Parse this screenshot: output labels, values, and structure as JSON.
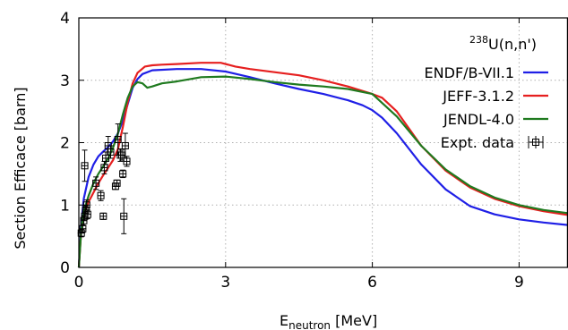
{
  "chart_data": {
    "type": "line",
    "xlabel": {
      "main": "E",
      "sub": "neutron",
      "unit": " [MeV]"
    },
    "ylabel": "Section Efficace [barn]",
    "xlim": [
      0,
      10
    ],
    "ylim": [
      0,
      4
    ],
    "xticks": [
      0,
      3,
      6,
      9
    ],
    "yticks": [
      0,
      1,
      2,
      3,
      4
    ],
    "x_tick_labels": [
      "0",
      "3",
      "6",
      "9"
    ],
    "y_tick_labels": [
      "0",
      "1",
      "2",
      "3",
      "4"
    ],
    "grid": true,
    "legend_title": {
      "sup": "238",
      "main": "U(n,n')"
    },
    "legend_position": "top-right",
    "series": [
      {
        "name": "ENDF/B-VII.1",
        "color": "#1f1fe6",
        "x": [
          0.0,
          0.05,
          0.1,
          0.2,
          0.3,
          0.4,
          0.5,
          0.6,
          0.7,
          0.8,
          0.9,
          1.0,
          1.1,
          1.2,
          1.3,
          1.5,
          2.0,
          2.5,
          3.0,
          3.5,
          4.0,
          4.5,
          5.0,
          5.5,
          5.8,
          6.0,
          6.2,
          6.5,
          7.0,
          7.5,
          8.0,
          8.5,
          9.0,
          9.5,
          10.0
        ],
        "y": [
          0.0,
          0.7,
          1.1,
          1.45,
          1.65,
          1.78,
          1.86,
          1.93,
          2.02,
          2.15,
          2.35,
          2.62,
          2.88,
          3.02,
          3.1,
          3.16,
          3.18,
          3.18,
          3.14,
          3.05,
          2.95,
          2.86,
          2.78,
          2.68,
          2.6,
          2.52,
          2.4,
          2.15,
          1.65,
          1.25,
          0.98,
          0.85,
          0.77,
          0.72,
          0.68
        ]
      },
      {
        "name": "JEFF-3.1.2",
        "color": "#e61f1f",
        "x": [
          0.0,
          0.05,
          0.1,
          0.2,
          0.3,
          0.4,
          0.5,
          0.6,
          0.7,
          0.8,
          0.9,
          1.0,
          1.1,
          1.2,
          1.35,
          1.5,
          1.7,
          2.0,
          2.5,
          2.9,
          3.2,
          3.5,
          4.0,
          4.5,
          5.0,
          5.5,
          6.0,
          6.2,
          6.5,
          7.0,
          7.5,
          8.0,
          8.5,
          9.0,
          9.5,
          10.0
        ],
        "y": [
          0.0,
          0.6,
          0.85,
          1.05,
          1.2,
          1.35,
          1.48,
          1.6,
          1.72,
          1.9,
          2.25,
          2.65,
          2.95,
          3.12,
          3.22,
          3.24,
          3.25,
          3.26,
          3.28,
          3.28,
          3.22,
          3.18,
          3.13,
          3.08,
          3.0,
          2.9,
          2.78,
          2.72,
          2.5,
          1.95,
          1.55,
          1.28,
          1.1,
          0.98,
          0.9,
          0.84
        ]
      },
      {
        "name": "JENDL-4.0",
        "color": "#1f7a1f",
        "x": [
          0.0,
          0.05,
          0.1,
          0.2,
          0.3,
          0.4,
          0.5,
          0.6,
          0.7,
          0.8,
          0.9,
          1.0,
          1.1,
          1.2,
          1.3,
          1.4,
          1.5,
          1.7,
          2.0,
          2.5,
          3.0,
          3.5,
          4.0,
          4.5,
          5.0,
          5.5,
          6.0,
          6.5,
          7.0,
          7.5,
          8.0,
          8.5,
          9.0,
          9.5,
          10.0
        ],
        "y": [
          0.0,
          0.6,
          0.9,
          1.15,
          1.35,
          1.5,
          1.62,
          1.75,
          1.92,
          2.15,
          2.45,
          2.72,
          2.9,
          2.97,
          2.95,
          2.88,
          2.9,
          2.95,
          2.98,
          3.05,
          3.06,
          3.02,
          2.97,
          2.93,
          2.9,
          2.86,
          2.78,
          2.42,
          1.95,
          1.57,
          1.3,
          1.12,
          1.0,
          0.92,
          0.87
        ]
      },
      {
        "name": "Expt. data",
        "type": "scatter",
        "color": "#000000",
        "points": [
          {
            "x": 0.05,
            "y": 0.55,
            "err": 0.06
          },
          {
            "x": 0.08,
            "y": 0.62,
            "err": 0.06
          },
          {
            "x": 0.1,
            "y": 0.75,
            "err": 0.08
          },
          {
            "x": 0.12,
            "y": 0.82,
            "err": 0.07
          },
          {
            "x": 0.14,
            "y": 0.92,
            "err": 0.07
          },
          {
            "x": 0.16,
            "y": 1.0,
            "err": 0.08
          },
          {
            "x": 0.18,
            "y": 0.85,
            "err": 0.07
          },
          {
            "x": 0.12,
            "y": 1.63,
            "err": 0.25
          },
          {
            "x": 0.35,
            "y": 1.35,
            "err": 0.1
          },
          {
            "x": 0.45,
            "y": 1.15,
            "err": 0.08
          },
          {
            "x": 0.5,
            "y": 0.82,
            "err": 0.05
          },
          {
            "x": 0.52,
            "y": 1.6,
            "err": 0.1
          },
          {
            "x": 0.55,
            "y": 1.75,
            "err": 0.1
          },
          {
            "x": 0.6,
            "y": 1.95,
            "err": 0.15
          },
          {
            "x": 0.65,
            "y": 1.85,
            "err": 0.1
          },
          {
            "x": 0.75,
            "y": 1.3,
            "err": 0.05
          },
          {
            "x": 0.78,
            "y": 1.35,
            "err": 0.05
          },
          {
            "x": 0.8,
            "y": 2.05,
            "err": 0.25
          },
          {
            "x": 0.85,
            "y": 1.8,
            "err": 0.1
          },
          {
            "x": 0.88,
            "y": 1.8,
            "err": 0.08
          },
          {
            "x": 0.9,
            "y": 1.5,
            "err": 0.06
          },
          {
            "x": 0.92,
            "y": 0.82,
            "err": 0.28
          },
          {
            "x": 0.95,
            "y": 1.95,
            "err": 0.2
          },
          {
            "x": 0.98,
            "y": 1.7,
            "err": 0.08
          }
        ]
      }
    ]
  }
}
